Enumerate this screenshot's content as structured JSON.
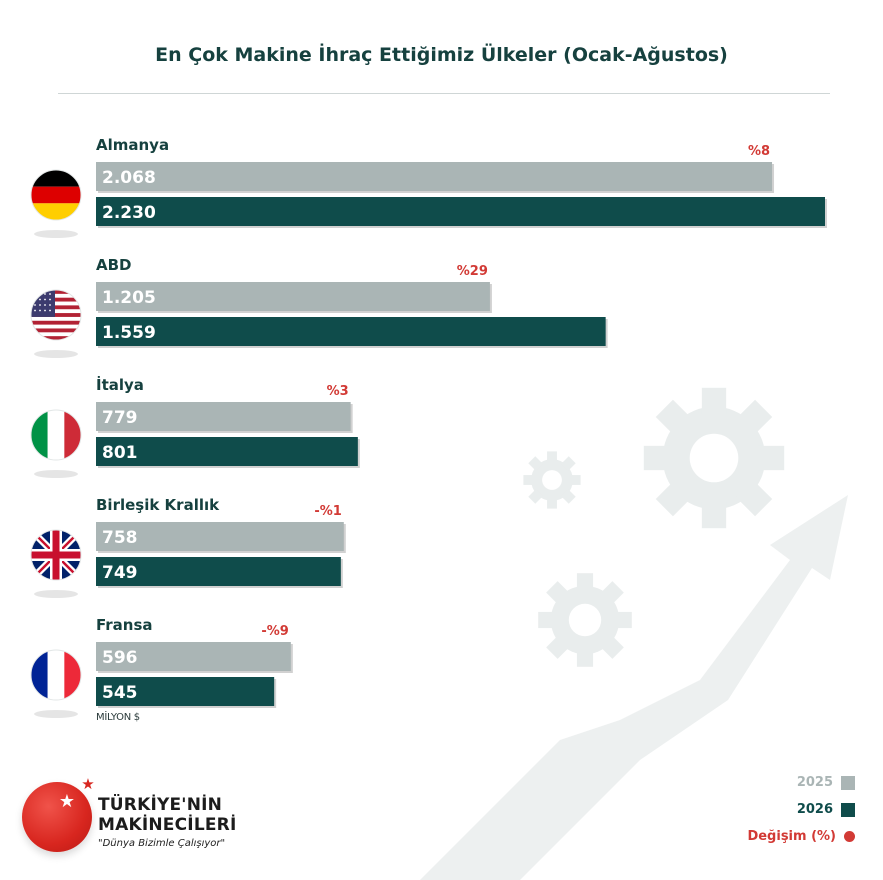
{
  "title": "En Çok Makine İhraç Ettiğimiz Ülkeler (Ocak-Ağustos)",
  "unit": "MİLYON $",
  "legend": {
    "y2025": "2025",
    "y2026": "2026",
    "change": "Değişim (%)"
  },
  "logo": {
    "line1": "TÜRKİYE'NİN",
    "line2": "MAKİNECİLERİ",
    "slogan": "\"Dünya Bizimle Çalışıyor\""
  },
  "colors": {
    "y2025": "#aab5b5",
    "y2026": "#0f4c4b",
    "change": "#d23a35",
    "title": "#16413f"
  },
  "chart_data": {
    "type": "bar",
    "orientation": "horizontal",
    "title": "En Çok Makine İhraç Ettiğimiz Ülkeler (Ocak-Ağustos)",
    "unit": "MİLYON $",
    "categories": [
      "Almanya",
      "ABD",
      "İtalya",
      "Birleşik Krallık",
      "Fransa"
    ],
    "flags": [
      "germany-flag",
      "usa-flag",
      "italy-flag",
      "uk-flag",
      "france-flag"
    ],
    "series": [
      {
        "name": "2025",
        "values": [
          2068,
          1205,
          779,
          758,
          596
        ],
        "labels": [
          "2.068",
          "1.205",
          "779",
          "758",
          "596"
        ]
      },
      {
        "name": "2026",
        "values": [
          2230,
          1559,
          801,
          749,
          545
        ],
        "labels": [
          "2.230",
          "1.559",
          "801",
          "749",
          "545"
        ]
      }
    ],
    "change_labels": [
      "%8",
      "%29",
      "%3",
      "-%1",
      "-%9"
    ],
    "legend_position": "bottom-right",
    "grid": false
  }
}
